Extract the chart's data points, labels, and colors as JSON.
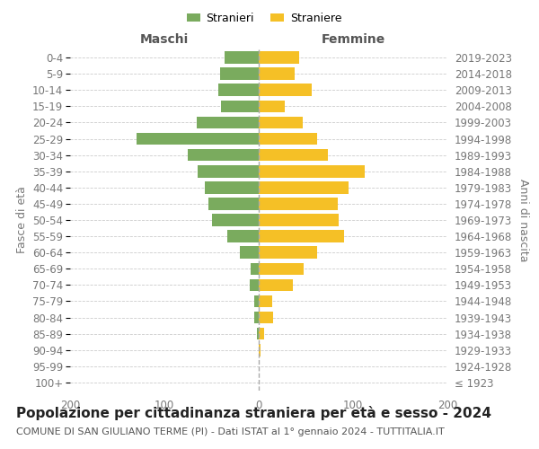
{
  "age_groups": [
    "100+",
    "95-99",
    "90-94",
    "85-89",
    "80-84",
    "75-79",
    "70-74",
    "65-69",
    "60-64",
    "55-59",
    "50-54",
    "45-49",
    "40-44",
    "35-39",
    "30-34",
    "25-29",
    "20-24",
    "15-19",
    "10-14",
    "5-9",
    "0-4"
  ],
  "birth_years": [
    "≤ 1923",
    "1924-1928",
    "1929-1933",
    "1934-1938",
    "1939-1943",
    "1944-1948",
    "1949-1953",
    "1954-1958",
    "1959-1963",
    "1964-1968",
    "1969-1973",
    "1974-1978",
    "1979-1983",
    "1984-1988",
    "1989-1993",
    "1994-1998",
    "1999-2003",
    "2004-2008",
    "2009-2013",
    "2014-2018",
    "2019-2023"
  ],
  "males": [
    0,
    0,
    0,
    2,
    5,
    5,
    10,
    9,
    20,
    33,
    50,
    53,
    57,
    65,
    75,
    130,
    66,
    40,
    43,
    41,
    36
  ],
  "females": [
    0,
    0,
    2,
    6,
    15,
    14,
    36,
    48,
    62,
    90,
    85,
    84,
    95,
    112,
    73,
    62,
    47,
    28,
    56,
    38,
    43
  ],
  "male_color": "#7aab5e",
  "female_color": "#f5c026",
  "grid_color": "#cccccc",
  "title": "Popolazione per cittadinanza straniera per età e sesso - 2024",
  "subtitle": "COMUNE DI SAN GIULIANO TERME (PI) - Dati ISTAT al 1° gennaio 2024 - TUTTITALIA.IT",
  "ylabel_left": "Fasce di età",
  "ylabel_right": "Anni di nascita",
  "legend_male": "Stranieri",
  "legend_female": "Straniere",
  "xlim": 200,
  "title_fontsize": 11,
  "subtitle_fontsize": 8,
  "label_fontsize": 9,
  "tick_fontsize": 8.5,
  "header_fontsize": 10
}
